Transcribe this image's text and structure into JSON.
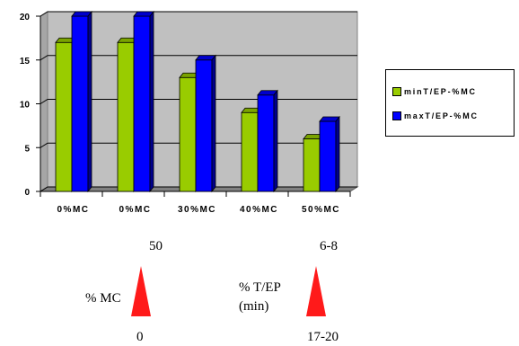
{
  "chart_data": {
    "type": "bar",
    "categories": [
      "0%MC",
      "0%MC",
      "30%MC",
      "40%MC",
      "50%MC"
    ],
    "series": [
      {
        "name": "minT/EP-%MC",
        "values": [
          17,
          17,
          13,
          9,
          6
        ],
        "color": "#99cc00"
      },
      {
        "name": "maxT/EP-%MC",
        "values": [
          20,
          20,
          15,
          11,
          8
        ],
        "color": "#0000ff"
      }
    ],
    "ylim": [
      0,
      20
    ],
    "yticks": [
      "0",
      "5",
      "10",
      "15",
      "20"
    ],
    "grid": true,
    "legend_position": "right",
    "style": "3d-clustered"
  },
  "annotations": {
    "mc": {
      "top": "50",
      "label": "% MC",
      "bottom": "0"
    },
    "tep": {
      "top": "6-8",
      "label_line1": "% T/EP",
      "label_line2": "(min)",
      "bottom": "17-20"
    },
    "arrow_color": "#ff1a1a"
  }
}
